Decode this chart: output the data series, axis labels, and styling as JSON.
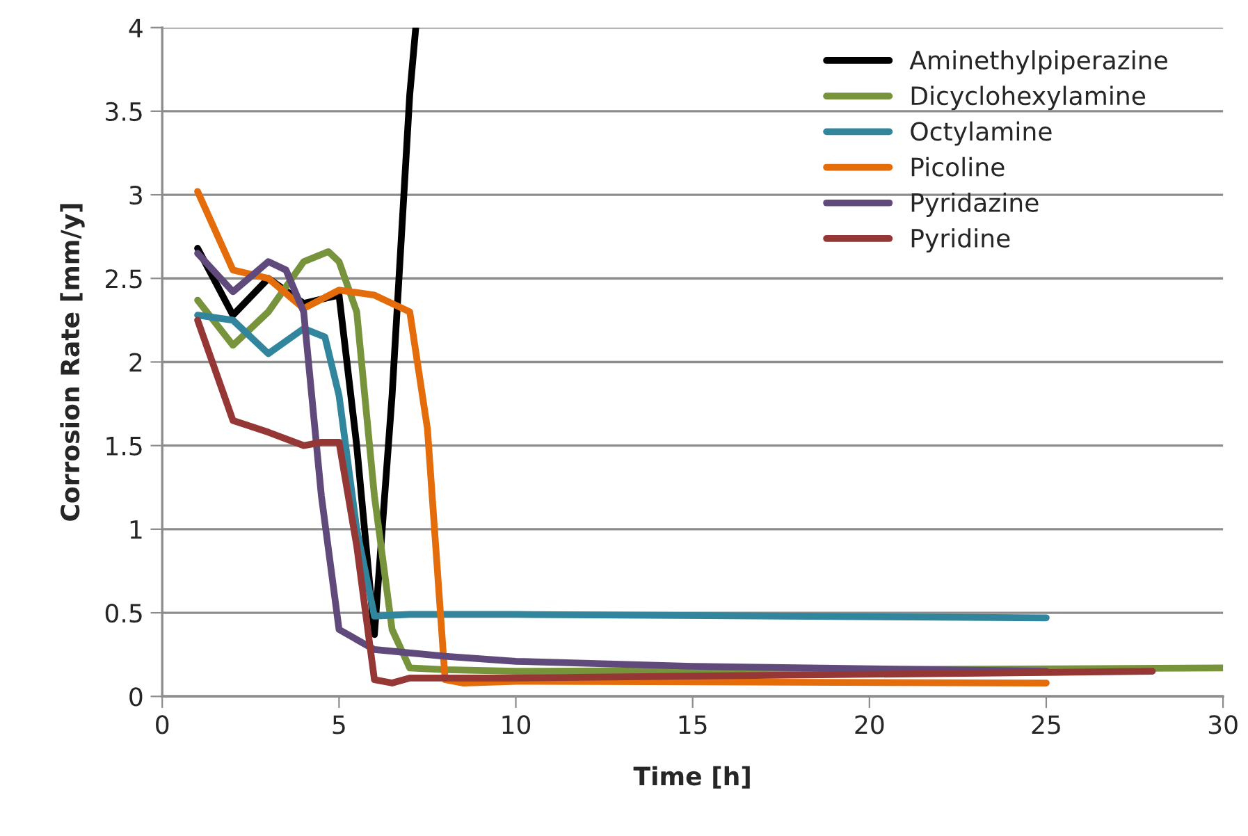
{
  "chart_data": {
    "type": "line",
    "xlabel": "Time [h]",
    "ylabel": "Corrosion Rate [mm/y]",
    "xlim": [
      0,
      30
    ],
    "xticks": [
      0,
      5,
      10,
      15,
      20,
      25,
      30
    ],
    "ylim": [
      0,
      4
    ],
    "yticks": [
      0,
      0.5,
      1,
      1.5,
      2,
      2.5,
      3,
      3.5,
      4
    ],
    "grid": "y",
    "legend": "top right",
    "marker": "none",
    "line_style": "solid",
    "series": [
      {
        "name": "Aminethylpiperazine",
        "color": "#000000",
        "x": [
          1,
          2,
          3,
          4,
          5,
          5.5,
          6,
          6.5,
          7,
          7.17
        ],
        "values": [
          2.68,
          2.28,
          2.5,
          2.35,
          2.4,
          1.5,
          0.37,
          1.8,
          3.6,
          4.0
        ]
      },
      {
        "name": "Dicyclohexylamine",
        "color": "#77933c",
        "x": [
          1,
          2,
          3,
          4,
          4.7,
          5,
          5.5,
          6,
          6.5,
          7,
          8,
          10,
          20,
          30
        ],
        "values": [
          2.37,
          2.1,
          2.3,
          2.6,
          2.66,
          2.6,
          2.3,
          1.2,
          0.4,
          0.17,
          0.16,
          0.15,
          0.16,
          0.17
        ]
      },
      {
        "name": "Octylamine",
        "color": "#31859c",
        "x": [
          1,
          2,
          3,
          4,
          4.6,
          5,
          5.5,
          6,
          7,
          8,
          10,
          25
        ],
        "values": [
          2.28,
          2.25,
          2.05,
          2.2,
          2.15,
          1.8,
          1.0,
          0.48,
          0.49,
          0.49,
          0.49,
          0.47
        ]
      },
      {
        "name": "Picoline",
        "color": "#e46c0a",
        "x": [
          1,
          2,
          3,
          4,
          5,
          6,
          7,
          7.5,
          8,
          8.5,
          10,
          25
        ],
        "values": [
          3.02,
          2.55,
          2.5,
          2.32,
          2.43,
          2.4,
          2.3,
          1.6,
          0.1,
          0.08,
          0.09,
          0.08
        ]
      },
      {
        "name": "Pyridazine",
        "color": "#604a7b",
        "x": [
          1,
          2,
          3,
          3.5,
          4,
          4.5,
          5,
          6,
          8,
          10,
          15,
          25
        ],
        "values": [
          2.65,
          2.42,
          2.6,
          2.55,
          2.3,
          1.2,
          0.4,
          0.28,
          0.24,
          0.21,
          0.18,
          0.15
        ]
      },
      {
        "name": "Pyridine",
        "color": "#953735",
        "x": [
          1,
          2,
          3,
          4,
          4.5,
          5,
          5.5,
          6,
          6.5,
          7,
          10,
          28
        ],
        "values": [
          2.25,
          1.65,
          1.58,
          1.5,
          1.52,
          1.52,
          0.9,
          0.1,
          0.08,
          0.11,
          0.11,
          0.15
        ]
      }
    ]
  }
}
